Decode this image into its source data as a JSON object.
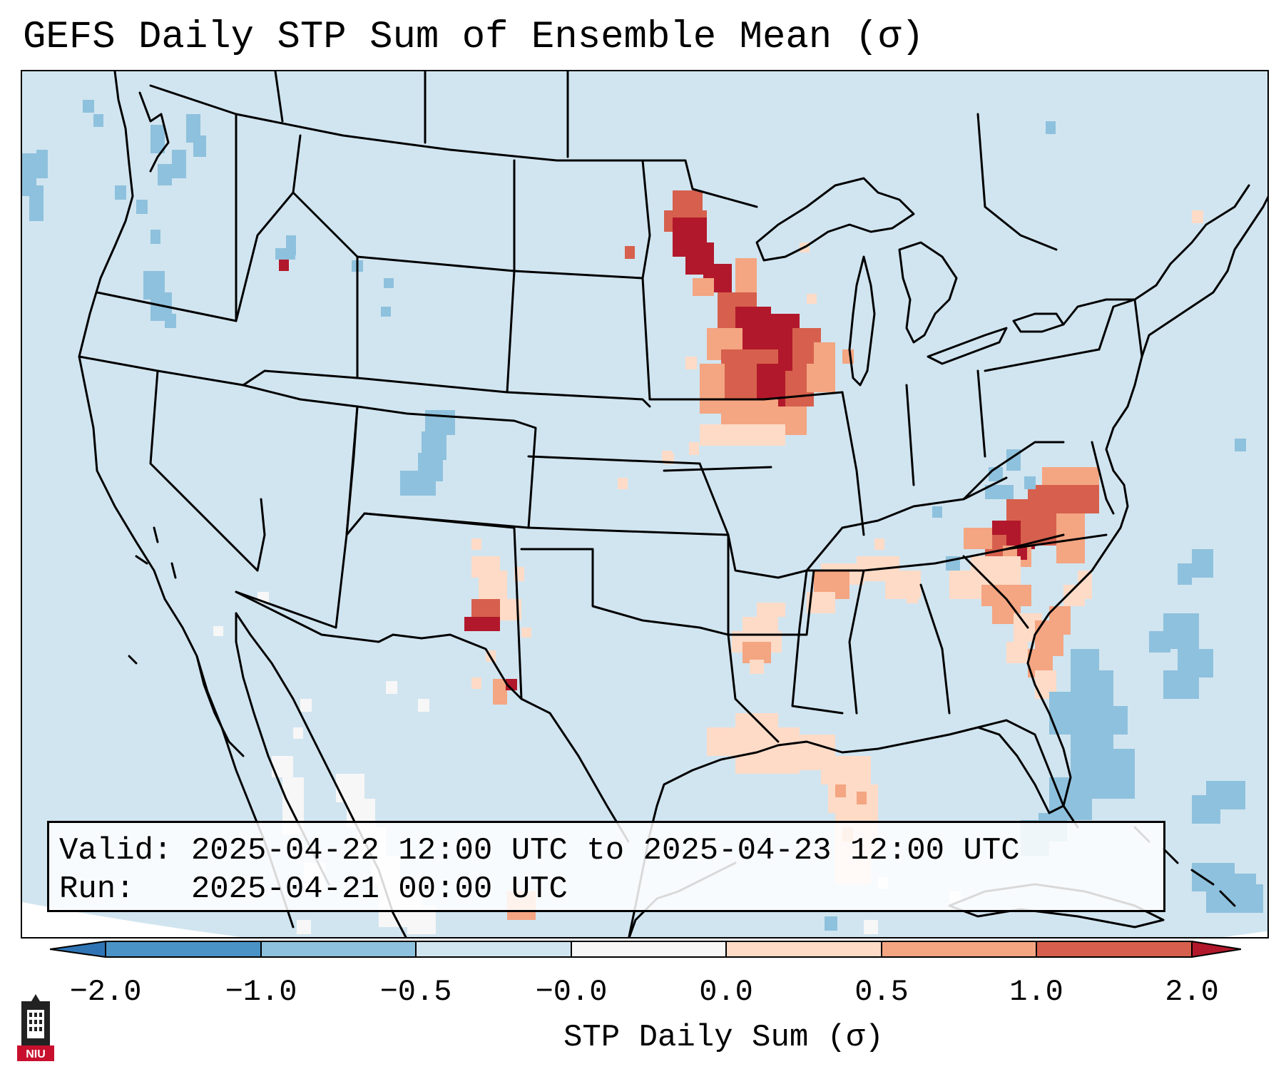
{
  "title": "GEFS Daily STP Sum of Ensemble Mean (σ)",
  "info": {
    "valid_label": "Valid:",
    "valid_value": "2025-04-22 12:00 UTC to 2025-04-23 12:00 UTC",
    "run_label": "Run:",
    "run_value": "2025-04-21 00:00 UTC"
  },
  "colorbar": {
    "label": "STP Daily Sum (σ)",
    "ticks": [
      "−2.0",
      "−1.0",
      "−0.5",
      "−0.0",
      "0.0",
      "0.5",
      "1.0",
      "2.0"
    ],
    "colors": {
      "lt_-2": "#2f75b5",
      "-2_-1": "#4a93c7",
      "-1_-0.5": "#8ec1dd",
      "-0.5_0": "#d1e5f0",
      "0_0": "#f7f7f7",
      "0_0.5": "#fddbc7",
      "0.5_1": "#f4a582",
      "1_2": "#d6604d",
      "gt_2": "#b2182b"
    }
  },
  "logo": {
    "text": "NIU",
    "icon": "university-tower-icon"
  },
  "map": {
    "background_color": "#d1e5f0",
    "projection": "Lambert conformal",
    "region": "CONUS"
  }
}
